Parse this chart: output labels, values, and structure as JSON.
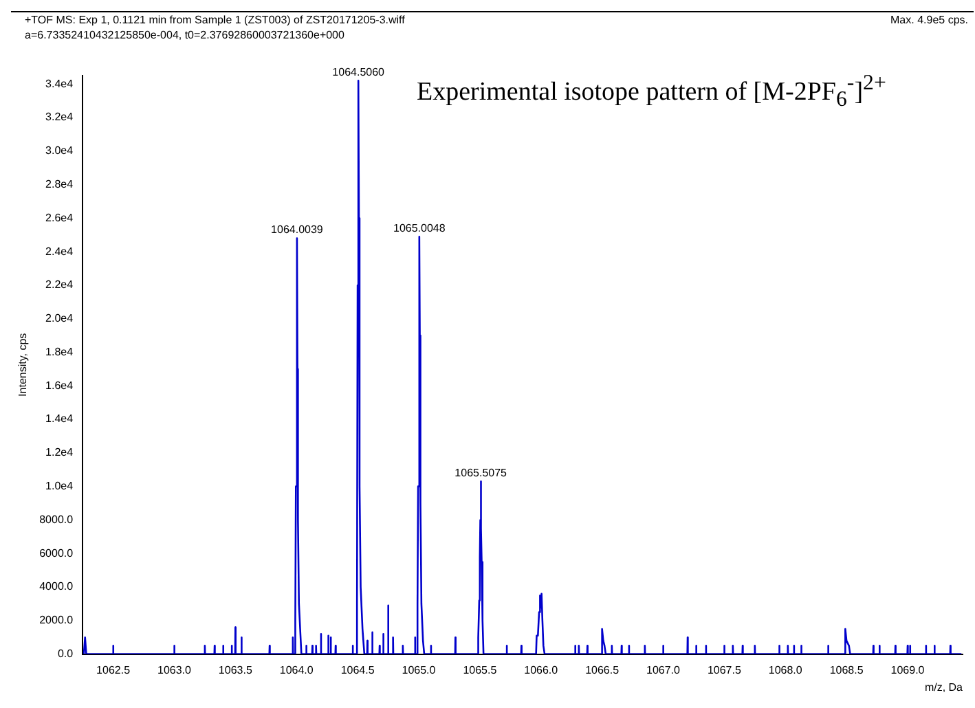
{
  "chart_data": {
    "type": "line",
    "title": "Experimental isotope pattern of [M-2PF$_{6}$$^{-}$]$^{2+}$",
    "xlabel": "m/z, Da",
    "ylabel": "Intensity, cps",
    "annotations": [
      "+TOF MS: Exp 1, 0.1121 min from Sample 1 (ZST003) of ZST20171205-3.wiff",
      "a=6.73352410432125850e-004, t0=2.37692860003721360e+000",
      "Max. 4.9e5 cps.",
      {
        "text": "1064.0039",
        "x": 1064.0039,
        "y": 24800
      },
      {
        "text": "1064.5060",
        "x": 1064.506,
        "y": 34200
      },
      {
        "text": "1065.0048",
        "x": 1065.0048,
        "y": 24900
      },
      {
        "text": "1065.5075",
        "x": 1065.5075,
        "y": 10300
      }
    ],
    "series": [
      {
        "color": "#0000cc",
        "x": [
          1062.26,
          1062.27,
          1062.28,
          1062.498,
          1062.5,
          1062.502,
          1062.998,
          1063.0,
          1063.002,
          1063.248,
          1063.25,
          1063.252,
          1063.328,
          1063.33,
          1063.332,
          1063.398,
          1063.4,
          1063.402,
          1063.468,
          1063.47,
          1063.472,
          1063.498,
          1063.5,
          1063.502,
          1063.548,
          1063.55,
          1063.552,
          1063.778,
          1063.78,
          1063.782,
          1063.968,
          1063.97,
          1063.972,
          1063.985,
          1063.99,
          1063.995,
          1064.0039,
          1064.008,
          1064.012,
          1064.02,
          1064.03,
          1064.04,
          1064.078,
          1064.08,
          1064.082,
          1064.128,
          1064.13,
          1064.132,
          1064.158,
          1064.16,
          1064.162,
          1064.198,
          1064.2,
          1064.202,
          1064.258,
          1064.26,
          1064.262,
          1064.278,
          1064.28,
          1064.282,
          1064.318,
          1064.32,
          1064.322,
          1064.458,
          1064.46,
          1064.462,
          1064.49,
          1064.495,
          1064.5,
          1064.506,
          1064.511,
          1064.516,
          1064.525,
          1064.54,
          1064.555,
          1064.578,
          1064.58,
          1064.582,
          1064.618,
          1064.62,
          1064.622,
          1064.678,
          1064.68,
          1064.682,
          1064.708,
          1064.71,
          1064.712,
          1064.748,
          1064.75,
          1064.752,
          1064.788,
          1064.79,
          1064.792,
          1064.868,
          1064.87,
          1064.872,
          1064.968,
          1064.97,
          1064.972,
          1064.985,
          1064.99,
          1064.995,
          1065.0048,
          1065.009,
          1065.014,
          1065.022,
          1065.035,
          1065.045,
          1065.098,
          1065.1,
          1065.102,
          1065.298,
          1065.3,
          1065.302,
          1065.48,
          1065.487,
          1065.495,
          1065.5,
          1065.504,
          1065.5075,
          1065.511,
          1065.515,
          1065.522,
          1065.53,
          1065.718,
          1065.72,
          1065.722,
          1065.838,
          1065.84,
          1065.842,
          1065.96,
          1065.965,
          1065.975,
          1065.985,
          1065.99,
          1065.995,
          1066.0,
          1066.005,
          1066.012,
          1066.02,
          1066.03,
          1066.278,
          1066.28,
          1066.282,
          1066.308,
          1066.31,
          1066.312,
          1066.378,
          1066.38,
          1066.382,
          1066.498,
          1066.5,
          1066.51,
          1066.52,
          1066.53,
          1066.578,
          1066.58,
          1066.582,
          1066.658,
          1066.66,
          1066.662,
          1066.718,
          1066.72,
          1066.722,
          1066.848,
          1066.85,
          1066.852,
          1066.998,
          1067.0,
          1067.002,
          1067.198,
          1067.2,
          1067.202,
          1067.268,
          1067.27,
          1067.272,
          1067.348,
          1067.35,
          1067.352,
          1067.498,
          1067.5,
          1067.502,
          1067.568,
          1067.57,
          1067.572,
          1067.648,
          1067.65,
          1067.652,
          1067.748,
          1067.75,
          1067.752,
          1067.948,
          1067.95,
          1067.952,
          1068.018,
          1068.02,
          1068.022,
          1068.068,
          1068.07,
          1068.072,
          1068.128,
          1068.13,
          1068.132,
          1068.348,
          1068.35,
          1068.352,
          1068.488,
          1068.49,
          1068.5,
          1068.52,
          1068.53,
          1068.718,
          1068.72,
          1068.722,
          1068.768,
          1068.77,
          1068.772,
          1068.898,
          1068.9,
          1068.902,
          1068.998,
          1069.0,
          1069.002,
          1069.018,
          1069.02,
          1069.022,
          1069.148,
          1069.15,
          1069.152,
          1069.218,
          1069.22,
          1069.222,
          1069.348,
          1069.35,
          1069.352,
          1069.44
        ],
        "values": [
          0,
          1000,
          0,
          0,
          500,
          0,
          0,
          500,
          0,
          0,
          500,
          0,
          0,
          500,
          0,
          0,
          500,
          0,
          0,
          500,
          0,
          0,
          1600,
          0,
          0,
          1000,
          0,
          0,
          500,
          0,
          0,
          1000,
          0,
          0,
          2000,
          10000,
          24800,
          17000,
          8000,
          3000,
          1500,
          0,
          0,
          500,
          0,
          0,
          500,
          0,
          0,
          500,
          0,
          0,
          1200,
          0,
          0,
          1100,
          0,
          0,
          1000,
          0,
          0,
          500,
          0,
          0,
          500,
          0,
          0,
          3000,
          22000,
          34200,
          26000,
          10000,
          4000,
          1500,
          0,
          0,
          800,
          0,
          0,
          1300,
          0,
          0,
          500,
          0,
          0,
          1200,
          0,
          0,
          2900,
          0,
          0,
          1000,
          0,
          0,
          500,
          0,
          0,
          1000,
          0,
          0,
          3000,
          10000,
          24900,
          19000,
          9000,
          3000,
          800,
          0,
          0,
          500,
          0,
          0,
          1000,
          0,
          0,
          1000,
          3200,
          5800,
          8000,
          10300,
          7500,
          5500,
          2000,
          0,
          0,
          500,
          0,
          0,
          500,
          0,
          0,
          1100,
          1100,
          2500,
          3500,
          2700,
          3000,
          3600,
          2000,
          500,
          0,
          0,
          500,
          0,
          0,
          500,
          0,
          0,
          500,
          0,
          0,
          1500,
          800,
          500,
          0,
          0,
          500,
          0,
          0,
          500,
          0,
          0,
          500,
          0,
          0,
          500,
          0,
          0,
          500,
          0,
          0,
          1000,
          0,
          0,
          500,
          0,
          0,
          500,
          0,
          0,
          500,
          0,
          0,
          500,
          0,
          0,
          500,
          0,
          0,
          500,
          0,
          0,
          500,
          0,
          0,
          500,
          0,
          0,
          500,
          0,
          0,
          500,
          0,
          0,
          500,
          0,
          0,
          1500,
          800,
          500,
          0,
          0,
          500,
          0,
          0,
          500,
          0,
          0,
          500,
          0,
          0,
          500,
          0,
          0,
          500,
          0,
          0,
          500,
          0,
          0,
          500,
          0,
          0,
          500,
          0,
          0
        ]
      }
    ],
    "xlim": [
      1062.25,
      1069.45
    ],
    "xticks": [
      1062.5,
      {
        "value": 1063,
        "label": "1063.0"
      },
      1063.5,
      {
        "value": 1064,
        "label": "1064.0"
      },
      1064.5,
      {
        "value": 1065,
        "label": "1065.0"
      },
      1065.5,
      {
        "value": 1066,
        "label": "1066.0"
      },
      1066.5,
      {
        "value": 1067,
        "label": "1067.0"
      },
      1067.5,
      {
        "value": 1068,
        "label": "1068.0"
      },
      1068.5,
      {
        "value": 1069,
        "label": "1069.0"
      }
    ],
    "ylim": [
      0,
      34500
    ],
    "yticks": [
      {
        "value": 0,
        "label": "0.0"
      },
      {
        "value": 2000,
        "label": "2000.0"
      },
      {
        "value": 4000,
        "label": "4000.0"
      },
      {
        "value": 6000,
        "label": "6000.0"
      },
      {
        "value": 8000,
        "label": "8000.0"
      },
      {
        "value": 10000,
        "label": "1.0e4"
      },
      {
        "value": 12000,
        "label": "1.2e4"
      },
      {
        "value": 14000,
        "label": "1.4e4"
      },
      {
        "value": 16000,
        "label": "1.6e4"
      },
      {
        "value": 18000,
        "label": "1.8e4"
      },
      {
        "value": 20000,
        "label": "2.0e4"
      },
      {
        "value": 22000,
        "label": "2.2e4"
      },
      {
        "value": 24000,
        "label": "2.4e4"
      },
      {
        "value": 26000,
        "label": "2.6e4"
      },
      {
        "value": 28000,
        "label": "2.8e4"
      },
      {
        "value": 30000,
        "label": "3.0e4"
      },
      {
        "value": 32000,
        "label": "3.2e4"
      },
      {
        "value": 34000,
        "label": "3.4e4"
      }
    ],
    "grid": false,
    "legend": false,
    "marker": "none",
    "line_style": "solid"
  }
}
